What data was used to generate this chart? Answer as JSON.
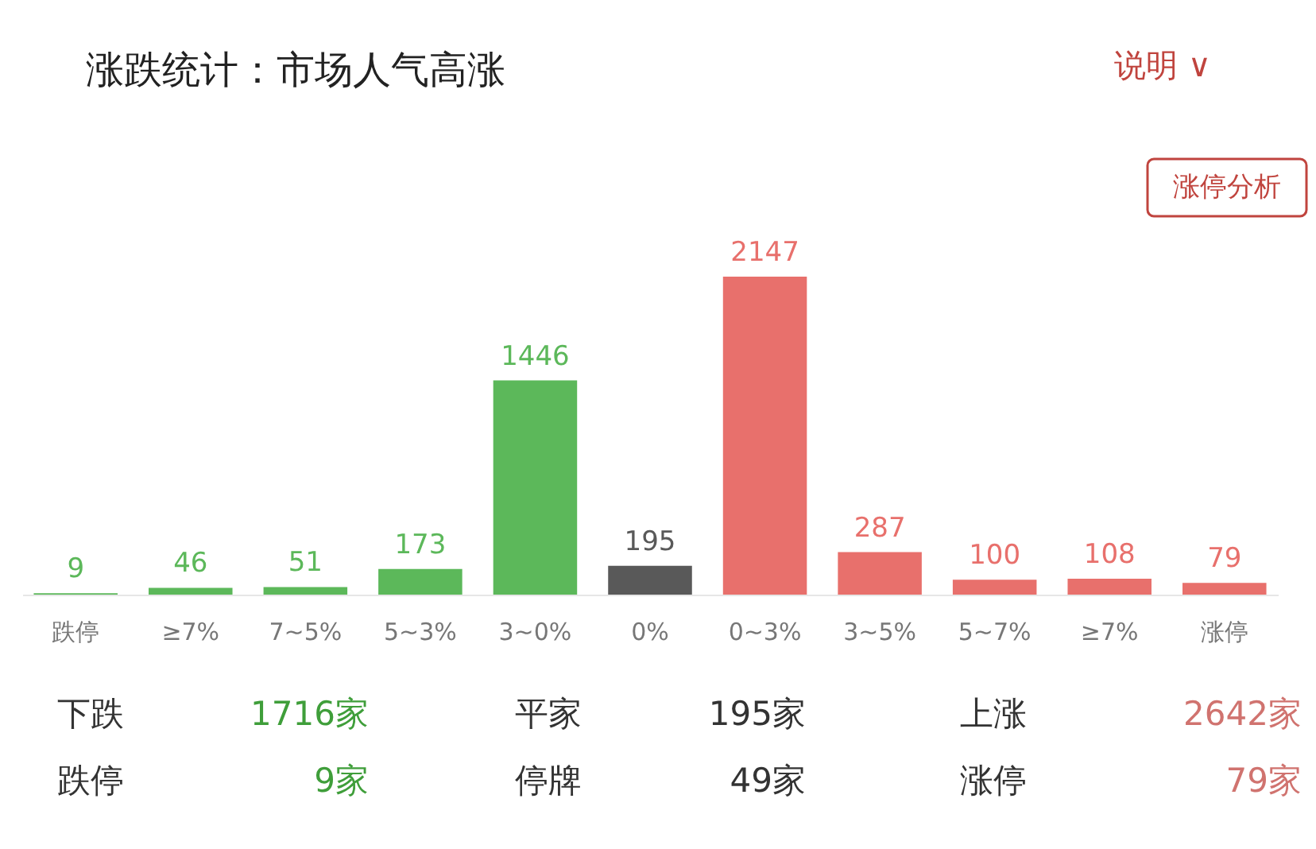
{
  "chart_data": {
    "type": "bar",
    "title": "涨跌统计：市场人气高涨",
    "categories": [
      "跌停",
      "≥7%",
      "7~5%",
      "5~3%",
      "3~0%",
      "0%",
      "0~3%",
      "3~5%",
      "5~7%",
      "≥7%",
      "涨停"
    ],
    "values": [
      9,
      46,
      51,
      173,
      1446,
      195,
      2147,
      287,
      100,
      108,
      79
    ],
    "colors": [
      "#5cb85a",
      "#5cb85a",
      "#5cb85a",
      "#5cb85a",
      "#5cb85a",
      "#595959",
      "#e8706c",
      "#e8706c",
      "#e8706c",
      "#e8706c",
      "#e8706c"
    ],
    "data_labels": true,
    "grid": false,
    "annotations": [
      "说明 ∨",
      "涨停分析",
      "下跌",
      "1716家",
      "平家",
      "195家",
      "上涨",
      "2642家",
      "跌停",
      "9家",
      "停牌",
      "49家",
      "涨停",
      "79家"
    ]
  }
}
